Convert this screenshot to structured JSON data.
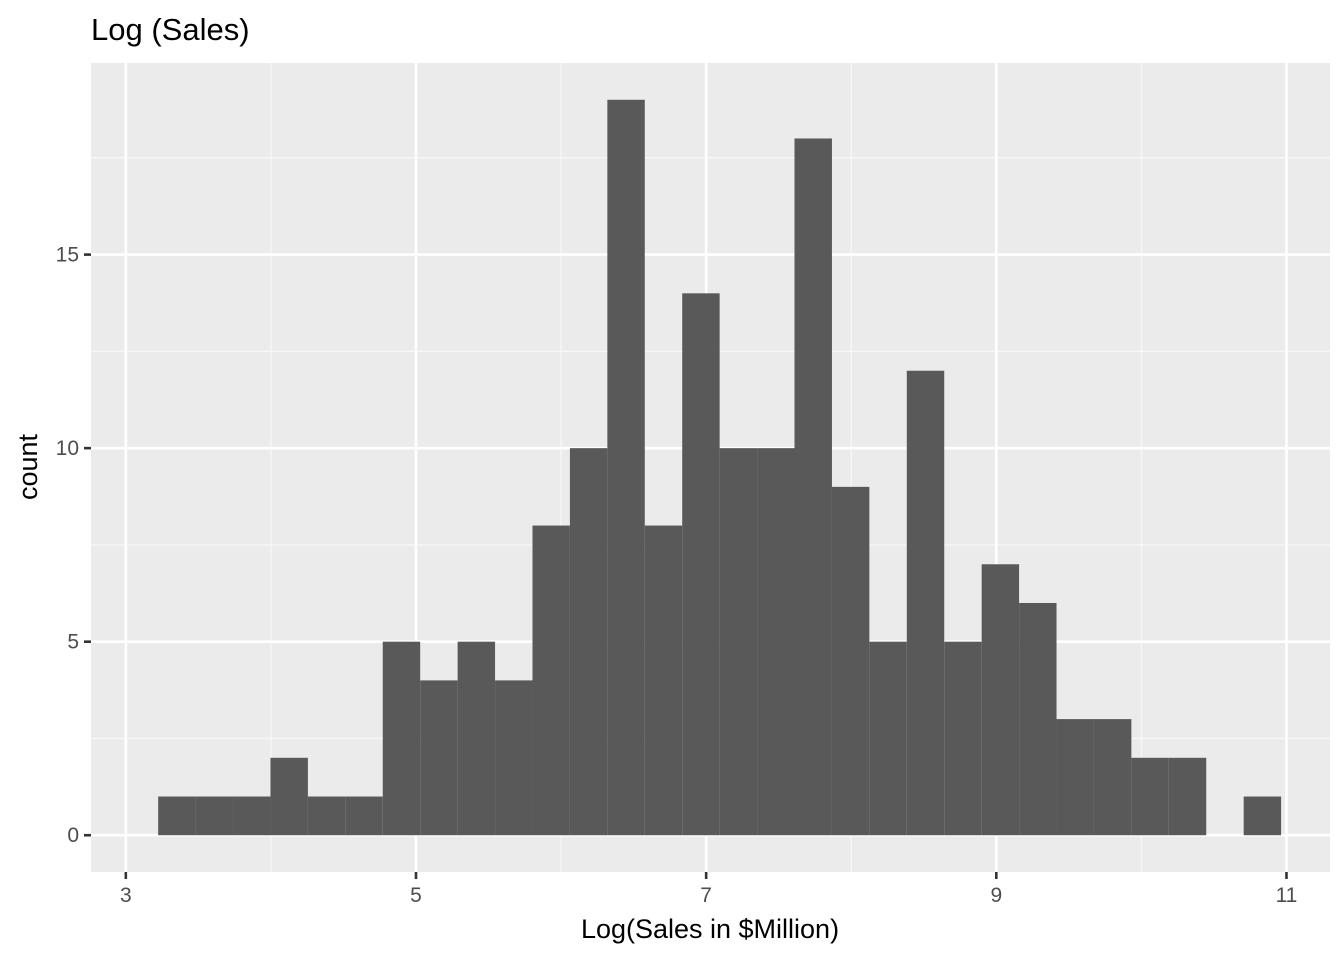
{
  "chart_data": {
    "type": "bar",
    "title": "Log (Sales)",
    "xlabel": "Log(Sales in $Million)",
    "ylabel": "count",
    "xlim": [
      2.76,
      11.3
    ],
    "ylim": [
      -0.95,
      19.95
    ],
    "x_ticks": [
      3,
      5,
      7,
      9,
      11
    ],
    "y_ticks": [
      0,
      5,
      10,
      15
    ],
    "x_minor_ticks": [
      4,
      6,
      8,
      10
    ],
    "y_minor_ticks": [
      2.5,
      7.5,
      12.5,
      17.5
    ],
    "bin_width": 0.258,
    "bin_centers": [
      3.352,
      3.61,
      3.868,
      4.126,
      4.384,
      4.642,
      4.9,
      5.158,
      5.416,
      5.674,
      5.932,
      6.19,
      6.448,
      6.706,
      6.964,
      7.222,
      7.48,
      7.738,
      7.996,
      8.254,
      8.512,
      8.77,
      9.028,
      9.286,
      9.544,
      9.802,
      10.06,
      10.318,
      10.576,
      10.834
    ],
    "counts": [
      1,
      1,
      1,
      2,
      1,
      1,
      5,
      4,
      5,
      4,
      8,
      10,
      19,
      8,
      14,
      10,
      10,
      18,
      9,
      5,
      12,
      5,
      7,
      6,
      3,
      3,
      2,
      2,
      0,
      1
    ],
    "grid": true,
    "colors": {
      "bar_fill": "#595959",
      "panel_background": "#ebebeb",
      "grid_major": "#ffffff",
      "grid_minor": "#f7f7f7",
      "tick_text": "#4d4d4d",
      "tick_mark": "#333333"
    }
  }
}
